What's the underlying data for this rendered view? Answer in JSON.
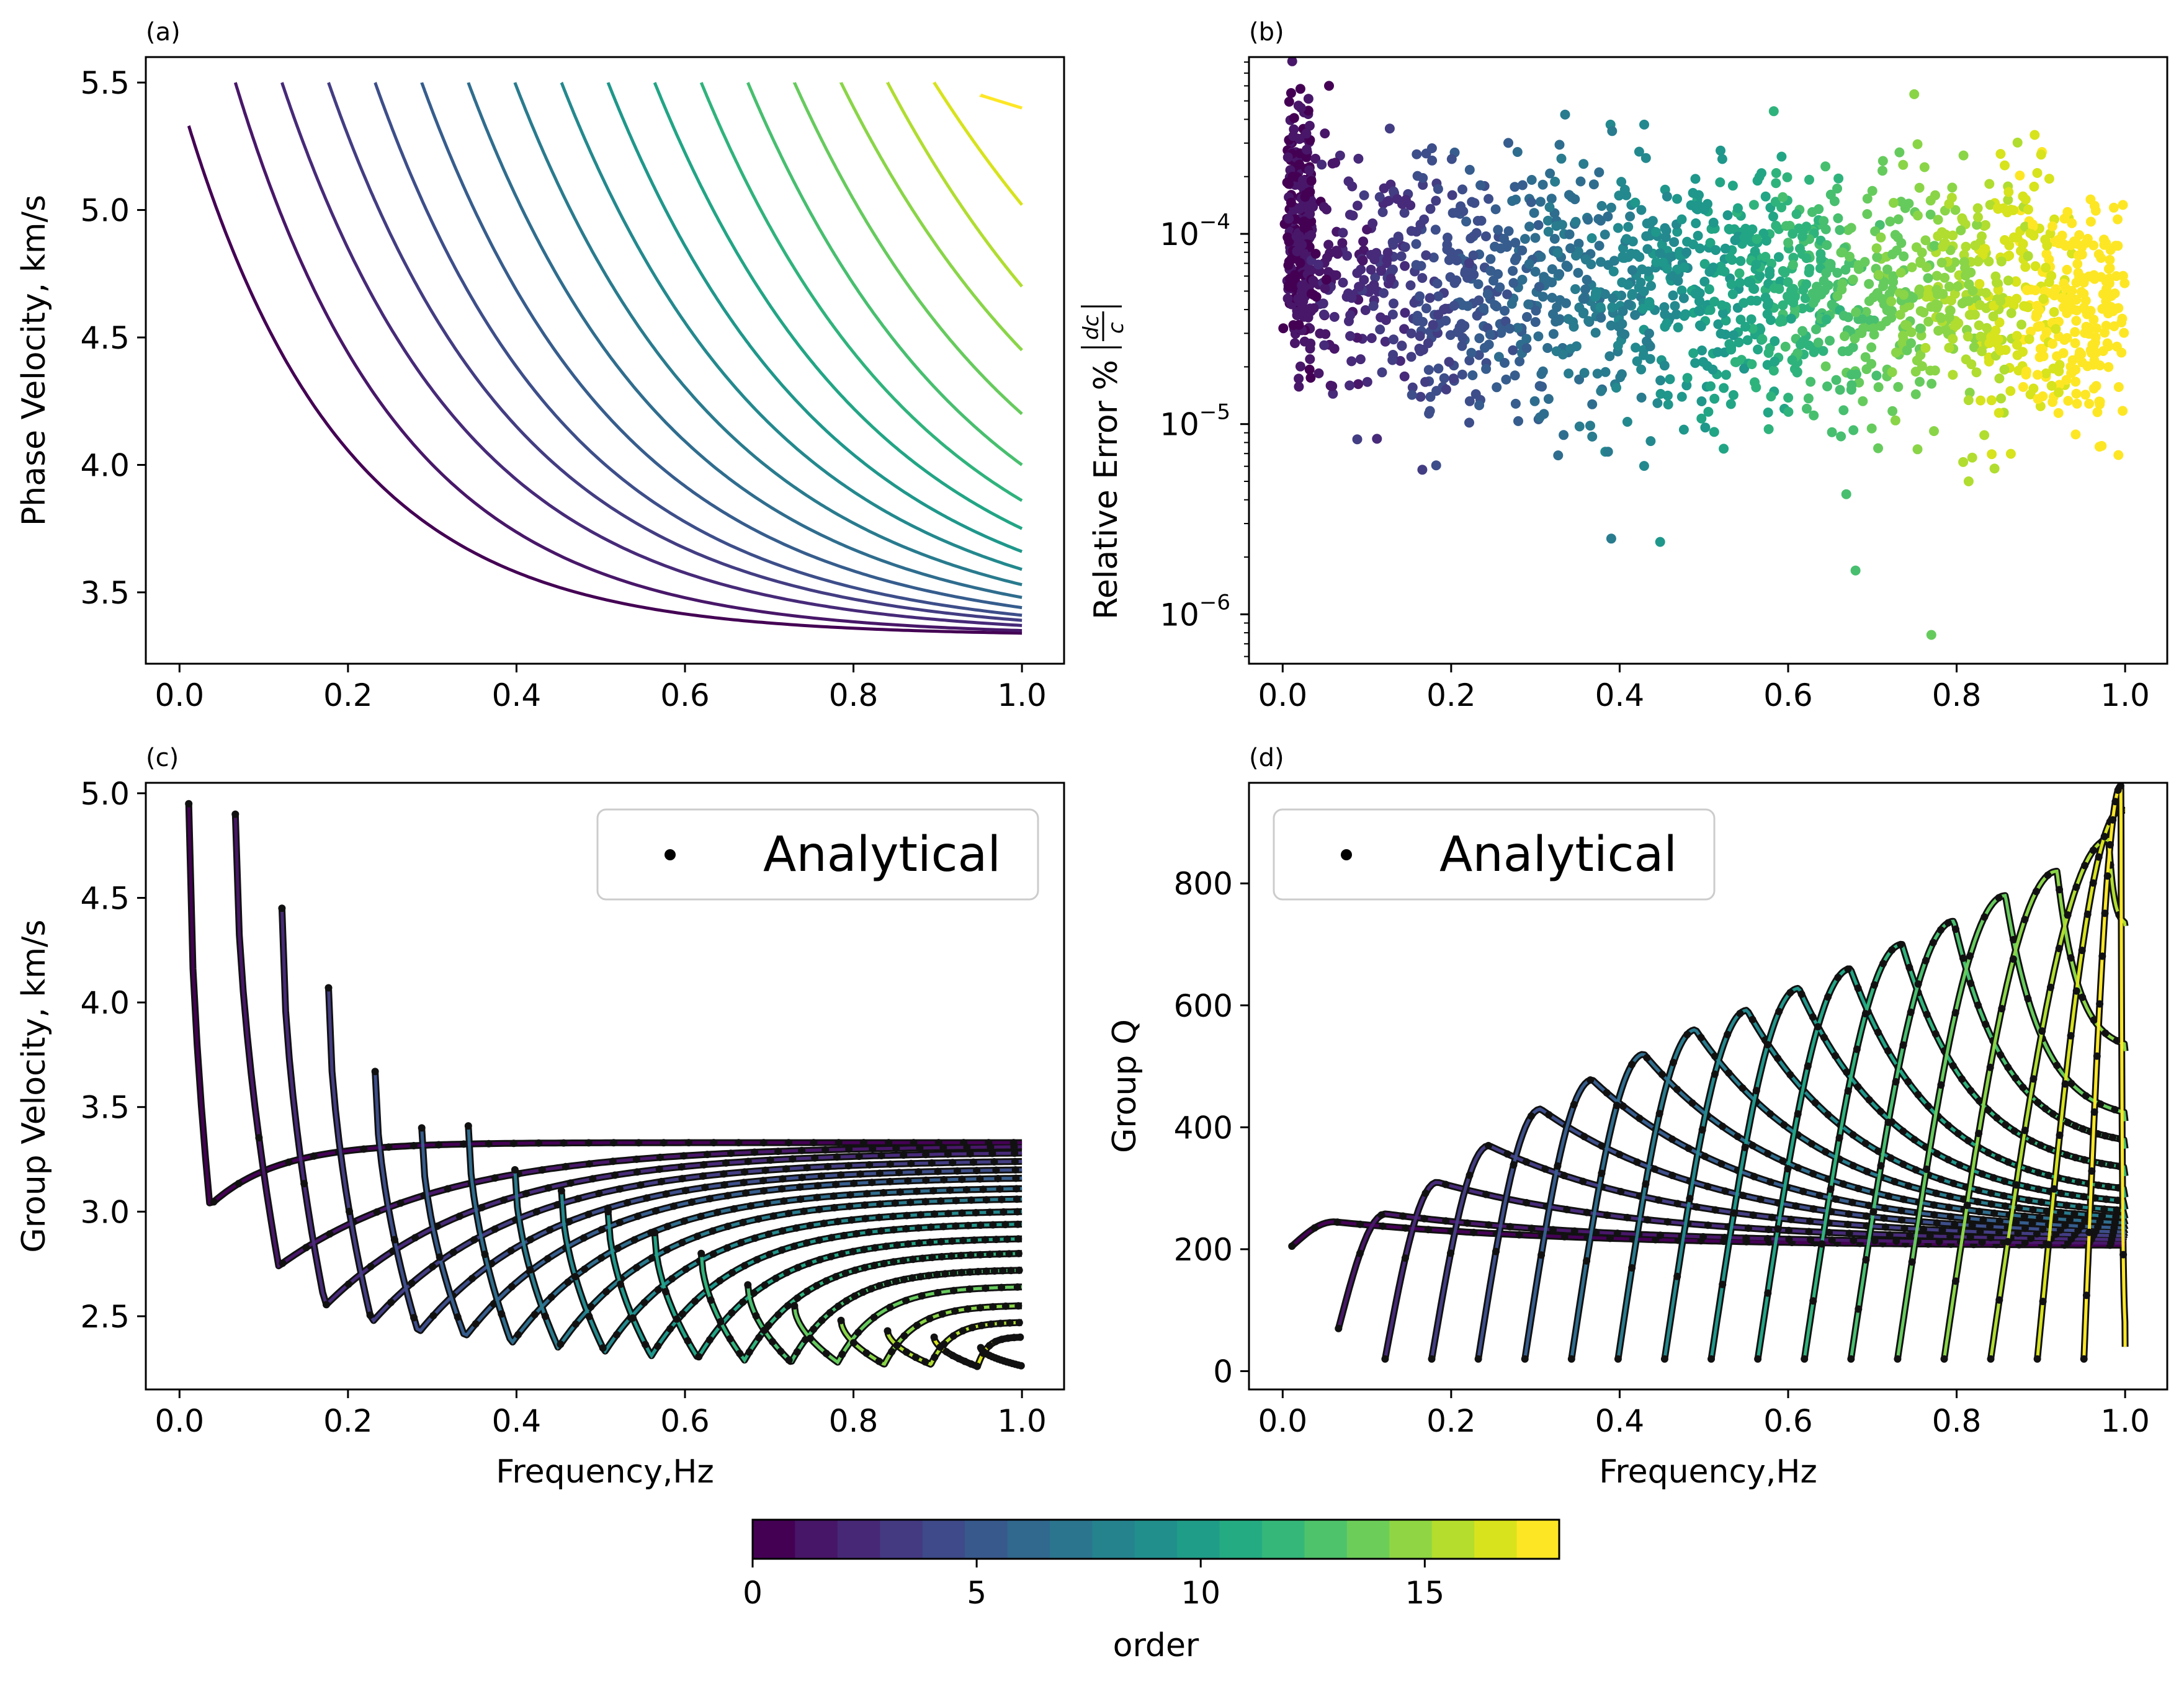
{
  "colormap": [
    "#440154",
    "#481a6c",
    "#472f7d",
    "#414487",
    "#39568c",
    "#31688e",
    "#2a788e",
    "#23888e",
    "#1f988b",
    "#22a884",
    "#35b779",
    "#54c568",
    "#7ad151",
    "#a5db36",
    "#d2e21b",
    "#fde725"
  ],
  "colorbar": {
    "label": "order",
    "ticks": [
      "0",
      "5",
      "10",
      "15"
    ],
    "range": [
      0,
      18
    ]
  },
  "chart_data": [
    {
      "id": "a",
      "panel_label": "(a)",
      "type": "line",
      "xlabel": "",
      "ylabel": "Phase Velocity, km/s",
      "xlim": [
        -0.04,
        1.05
      ],
      "ylim": [
        3.22,
        5.6
      ],
      "xticks": [
        "0.0",
        "0.2",
        "0.4",
        "0.6",
        "0.8",
        "1.0"
      ],
      "xtick_values": [
        0,
        0.2,
        0.4,
        0.6,
        0.8,
        1.0
      ],
      "yticks": [
        "3.5",
        "4.0",
        "4.5",
        "5.0",
        "5.5"
      ],
      "ytick_values": [
        3.5,
        4.0,
        4.5,
        5.0,
        5.5
      ],
      "series_note": "modes 0-17, each starting at cutoff f0 = 0.011 + 0.0553*k Hz, decaying from ~5.5 toward ~3.33 km/s",
      "modes": 18,
      "cutoff_start": 0.011,
      "cutoff_step": 0.0553,
      "c_low": 3.33,
      "c_high": 5.5,
      "end_values_at_1Hz": [
        3.34,
        3.35,
        3.37,
        3.39,
        3.41,
        3.44,
        3.48,
        3.53,
        3.59,
        3.66,
        3.75,
        3.86,
        4.0,
        4.2,
        4.45,
        4.7,
        5.02,
        5.4
      ]
    },
    {
      "id": "b",
      "panel_label": "(b)",
      "type": "scatter",
      "xlabel": "",
      "ylabel": "Relative Error %",
      "ylabel_math": "|dc/c|",
      "yscale": "log",
      "xlim": [
        -0.04,
        1.05
      ],
      "ylim": [
        5.5e-07,
        0.00085
      ],
      "xticks": [
        "0.0",
        "0.2",
        "0.4",
        "0.6",
        "0.8",
        "1.0"
      ],
      "xtick_values": [
        0,
        0.2,
        0.4,
        0.6,
        0.8,
        1.0
      ],
      "yticks_base": "10",
      "ytick_exponents": [
        "−6",
        "−5",
        "−4"
      ],
      "ytick_values": [
        1e-06,
        1e-05,
        0.0001
      ],
      "point_note": "~2000 points, errors mostly 1e-5 to 2e-4, colored by mode order",
      "notable_points": [
        {
          "x": 0.77,
          "y": 7.8e-07
        },
        {
          "x": 0.68,
          "y": 1.7e-06
        },
        {
          "x": 0.055,
          "y": 0.0006
        },
        {
          "x": 0.01,
          "y": 0.00055
        },
        {
          "x": 0.91,
          "y": 0.000195
        },
        {
          "x": 0.39,
          "y": 2.5e-06
        }
      ]
    },
    {
      "id": "c",
      "panel_label": "(c)",
      "type": "line",
      "xlabel": "Frequency,Hz",
      "ylabel": "Group Velocity, km/s",
      "xlim": [
        -0.04,
        1.05
      ],
      "ylim": [
        2.15,
        5.05
      ],
      "xticks": [
        "0.0",
        "0.2",
        "0.4",
        "0.6",
        "0.8",
        "1.0"
      ],
      "xtick_values": [
        0,
        0.2,
        0.4,
        0.6,
        0.8,
        1.0
      ],
      "yticks": [
        "2.5",
        "3.0",
        "3.5",
        "4.0",
        "4.5",
        "5.0"
      ],
      "ytick_values": [
        2.5,
        3.0,
        3.5,
        4.0,
        4.5,
        5.0
      ],
      "legend": "Analytical",
      "legend_loc": "upper right",
      "modes": 18,
      "start_values": [
        4.95,
        4.9,
        4.45,
        4.07,
        3.67,
        3.4,
        3.41,
        3.2,
        3.1,
        3.0,
        2.9,
        2.8,
        2.65,
        2.55,
        2.48,
        2.43,
        2.4,
        2.35
      ],
      "min_values": [
        3.03,
        2.74,
        2.55,
        2.47,
        2.42,
        2.4,
        2.37,
        2.35,
        2.33,
        2.31,
        2.3,
        2.29,
        2.28,
        2.28,
        2.27,
        2.27,
        2.26,
        2.26
      ],
      "end_values_at_1Hz": [
        3.33,
        3.31,
        3.28,
        3.24,
        3.2,
        3.16,
        3.11,
        3.06,
        3.0,
        2.94,
        2.87,
        2.8,
        2.72,
        2.64,
        2.55,
        2.47,
        2.4,
        2.3
      ]
    },
    {
      "id": "d",
      "panel_label": "(d)",
      "type": "line",
      "xlabel": "Frequency,Hz",
      "ylabel": "Group Q",
      "xlim": [
        -0.04,
        1.05
      ],
      "ylim": [
        -30,
        965
      ],
      "xticks": [
        "0.0",
        "0.2",
        "0.4",
        "0.6",
        "0.8",
        "1.0"
      ],
      "xtick_values": [
        0,
        0.2,
        0.4,
        0.6,
        0.8,
        1.0
      ],
      "yticks": [
        "0",
        "200",
        "400",
        "600",
        "800"
      ],
      "ytick_values": [
        0,
        200,
        400,
        600,
        800
      ],
      "legend": "Analytical",
      "legend_loc": "upper left",
      "modes": 18,
      "peak_values": [
        245,
        258,
        310,
        370,
        430,
        478,
        520,
        560,
        592,
        628,
        660,
        700,
        738,
        780,
        820,
        872,
        920,
        960
      ],
      "end_values_at_1Hz": [
        205,
        208,
        212,
        216,
        220,
        225,
        232,
        240,
        250,
        265,
        285,
        320,
        365,
        410,
        525,
        730,
        920,
        40
      ]
    }
  ]
}
